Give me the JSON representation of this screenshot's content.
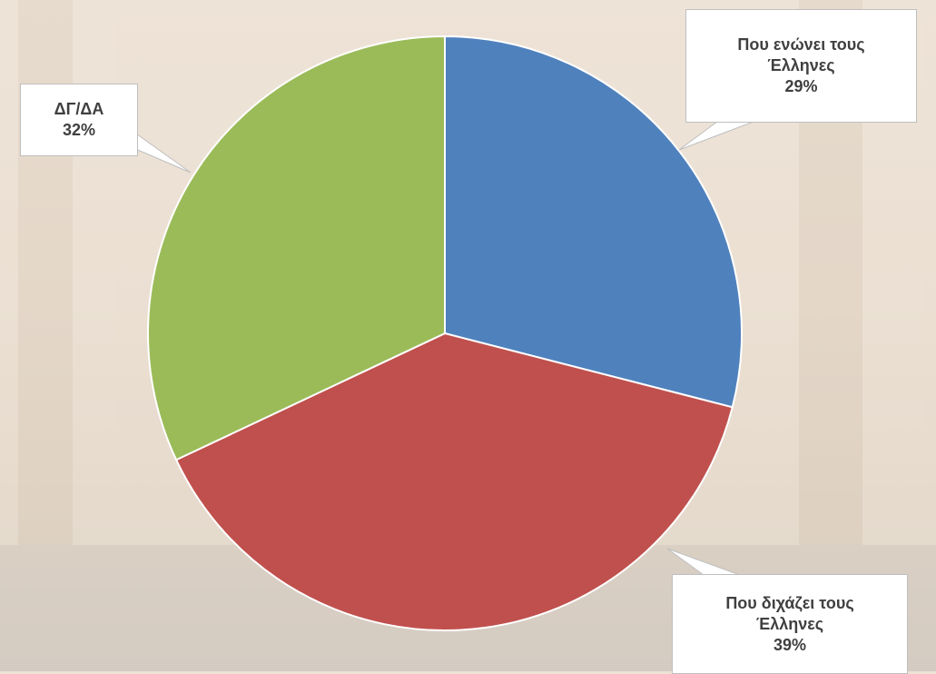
{
  "chart_data": {
    "type": "pie",
    "categories": [
      "Που ενώνει τους Έλληνες",
      "Που διχάζει τους Έλληνες",
      "ΔΓ/ΔΑ"
    ],
    "values": [
      29,
      39,
      32
    ],
    "value_labels": [
      "29%",
      "39%",
      "32%"
    ],
    "colors": [
      "#4f81bd",
      "#c0504d",
      "#9bbb59"
    ]
  }
}
